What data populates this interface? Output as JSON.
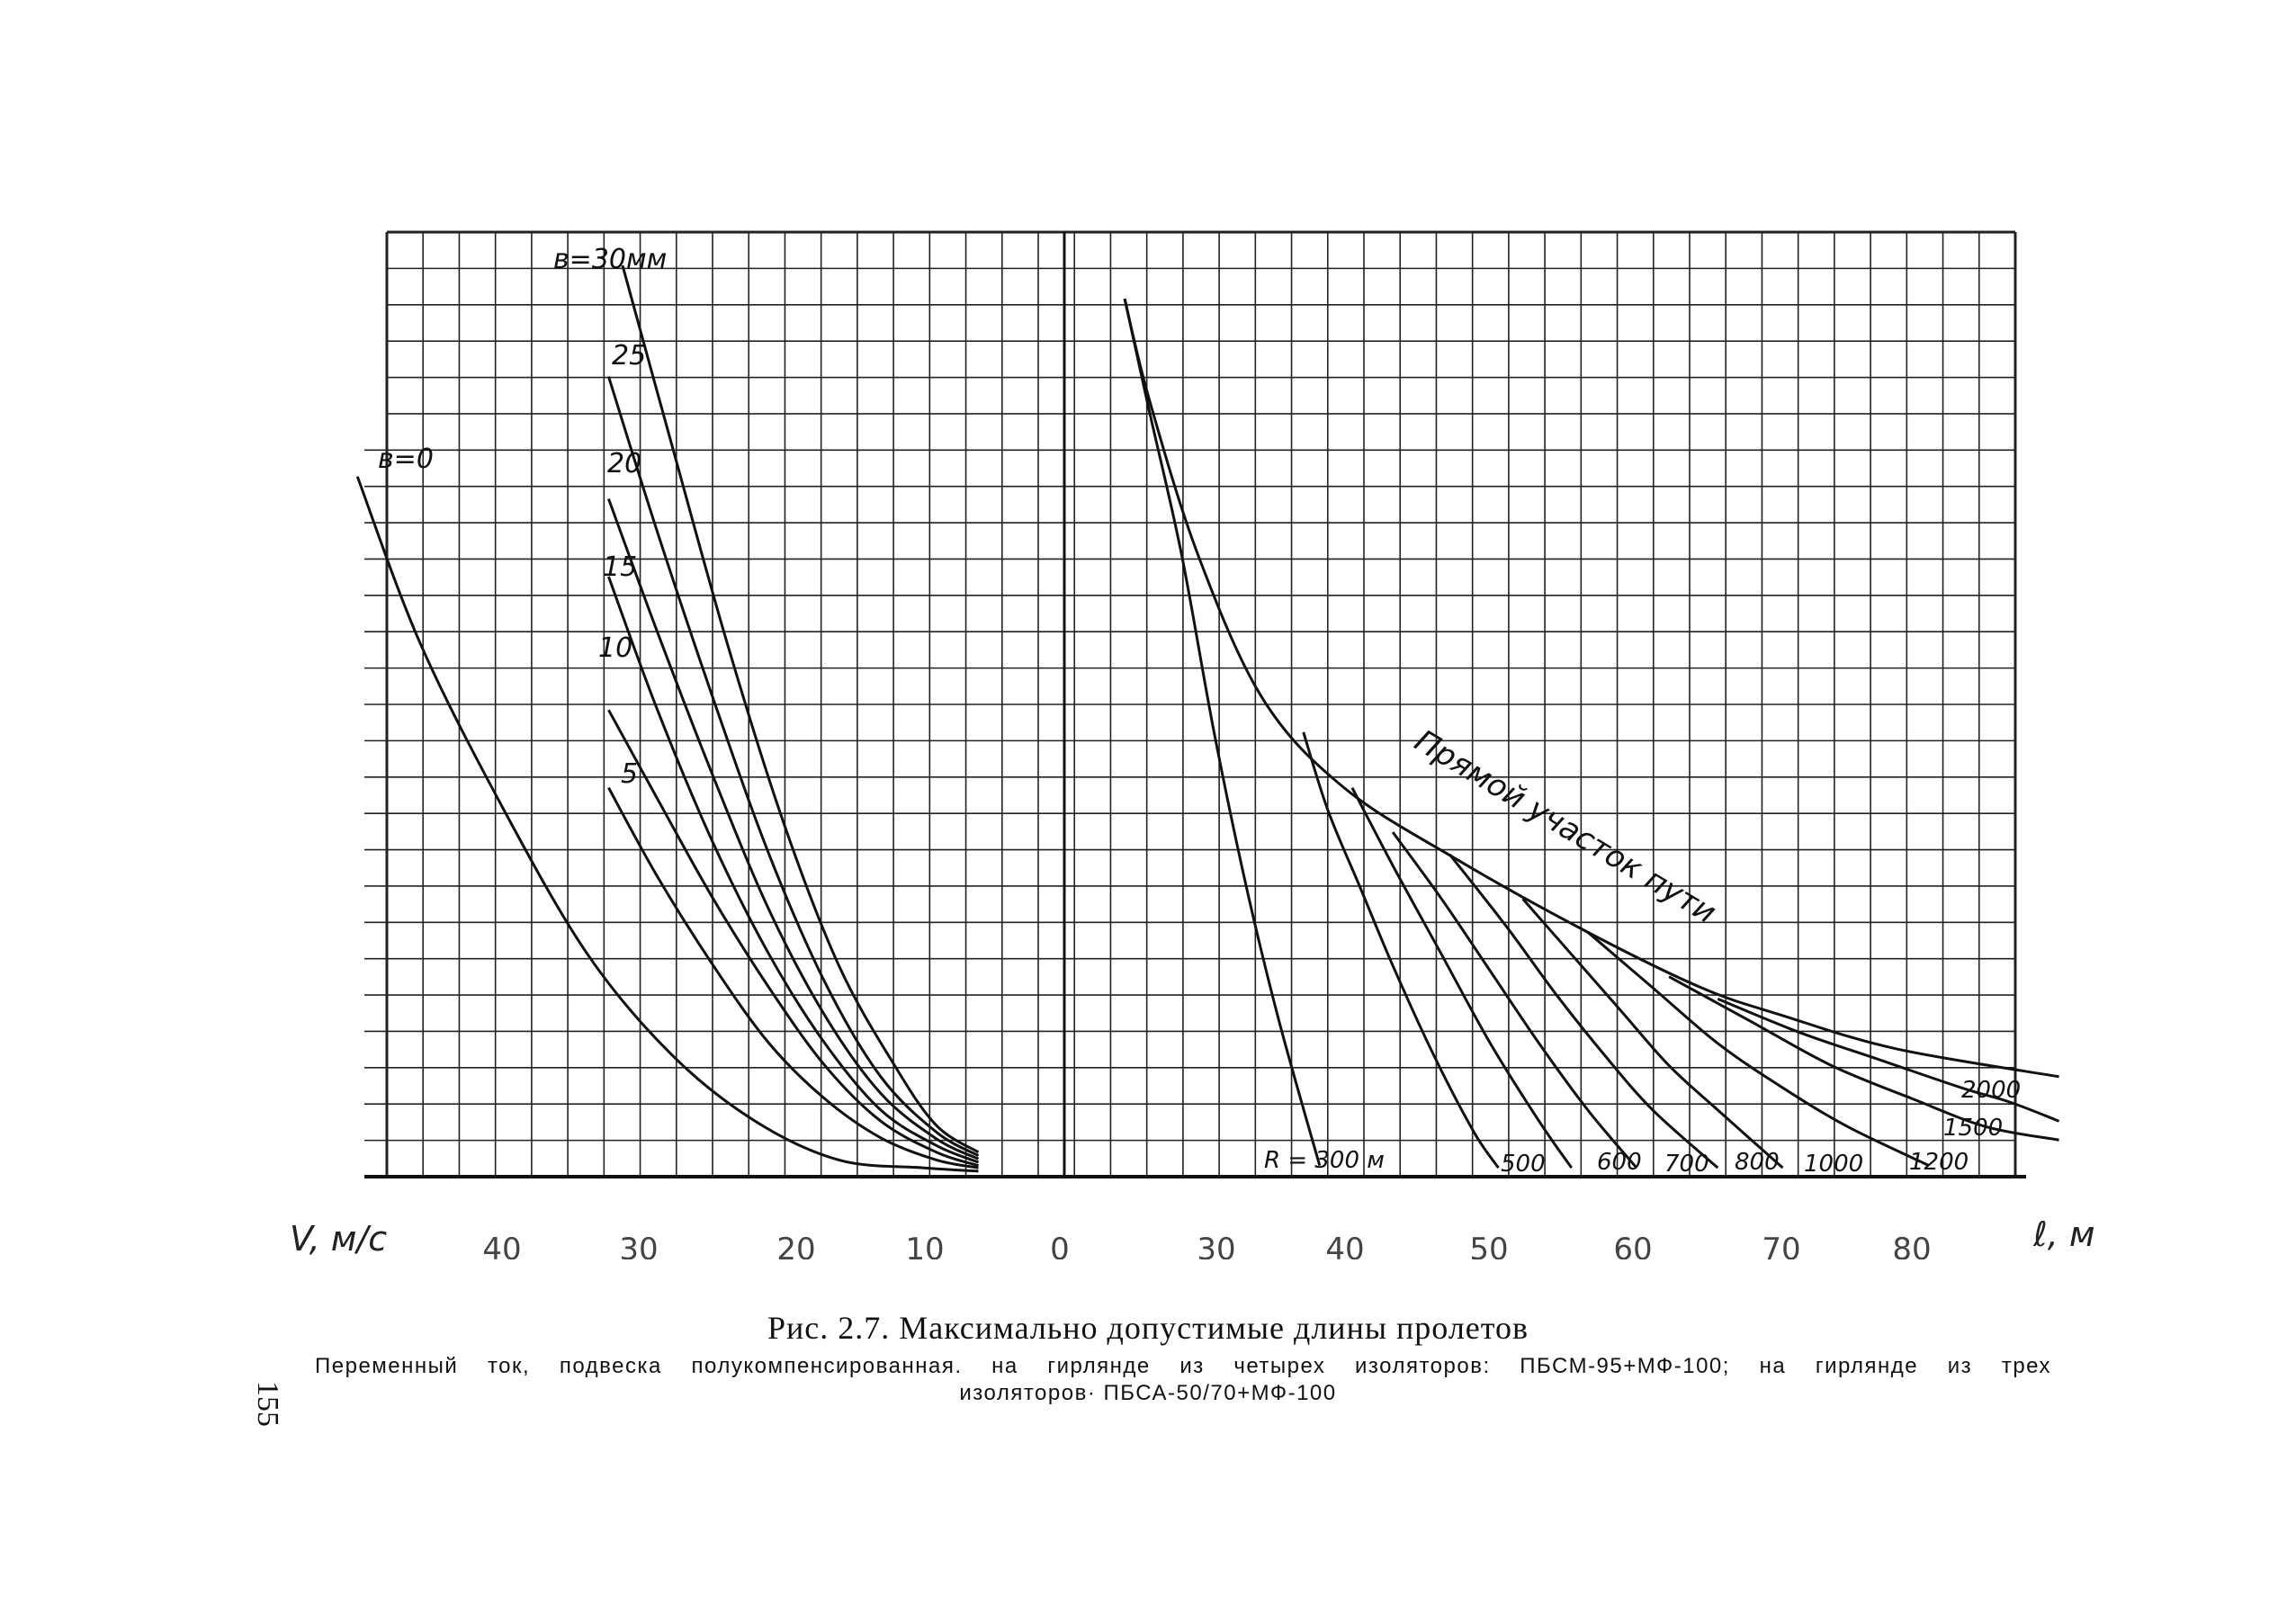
{
  "figure": {
    "page_number": "155",
    "caption_title": "Рис. 2.7. Максимально допустимые длины пролетов",
    "caption_line1": "Переменный ток, подвеска полукомпенсированная. на гирлянде из четырех изоляторов: ПБСМ-95+МФ-100; на гирлянде из трех",
    "caption_line2": "изоляторов· ПБСА-50/70+МФ-100"
  },
  "chart_data": {
    "type": "line",
    "left_axis": {
      "label": "V, м/с",
      "tick_labels": [
        "40",
        "30",
        "20",
        "10",
        "0"
      ],
      "ticks": [
        40,
        30,
        20,
        10,
        0
      ],
      "x_range": [
        48,
        3
      ]
    },
    "right_axis": {
      "label": "ℓ, м",
      "tick_labels": [
        "30",
        "40",
        "50",
        "60",
        "70",
        "80"
      ],
      "ticks": [
        30,
        40,
        50,
        60,
        70,
        80
      ],
      "x_range": [
        20,
        89
      ]
    },
    "y_range": [
      0,
      85
    ],
    "grid": true,
    "left_panel": {
      "curve_label_unit": "мм",
      "series": [
        {
          "name": "в=0",
          "label_text": "в=0",
          "points": [
            [
              48.5,
              63
            ],
            [
              44,
              48
            ],
            [
              38,
              33
            ],
            [
              32,
              20
            ],
            [
              26,
              11
            ],
            [
              20,
              5
            ],
            [
              14,
              1.5
            ],
            [
              8,
              0.8
            ],
            [
              4,
              0.5
            ]
          ]
        },
        {
          "name": "5",
          "label_text": "5",
          "points": [
            [
              30.5,
              35
            ],
            [
              27,
              27
            ],
            [
              23,
              19
            ],
            [
              19,
              12
            ],
            [
              15,
              7
            ],
            [
              11,
              3.5
            ],
            [
              7,
              1.5
            ],
            [
              4,
              0.8
            ]
          ]
        },
        {
          "name": "10",
          "label_text": "10",
          "points": [
            [
              30.5,
              42
            ],
            [
              27,
              34
            ],
            [
              23,
              25
            ],
            [
              19,
              17
            ],
            [
              15,
              10
            ],
            [
              11,
              5
            ],
            [
              7,
              2.2
            ],
            [
              4,
              1
            ]
          ]
        },
        {
          "name": "15",
          "label_text": "15",
          "points": [
            [
              30.5,
              54
            ],
            [
              27,
              42
            ],
            [
              23,
              30
            ],
            [
              19,
              20
            ],
            [
              15,
              12
            ],
            [
              11,
              6
            ],
            [
              7,
              2.8
            ],
            [
              4,
              1.3
            ]
          ]
        },
        {
          "name": "20",
          "label_text": "20",
          "points": [
            [
              30.5,
              61
            ],
            [
              27,
              49
            ],
            [
              23,
              36
            ],
            [
              19,
              24
            ],
            [
              15,
              14.5
            ],
            [
              11,
              7.5
            ],
            [
              7,
              3.4
            ],
            [
              4,
              1.6
            ]
          ]
        },
        {
          "name": "25",
          "label_text": "25",
          "points": [
            [
              30.5,
              72
            ],
            [
              27,
              58
            ],
            [
              23,
              43
            ],
            [
              19,
              29
            ],
            [
              15,
              17.5
            ],
            [
              11,
              9
            ],
            [
              7,
              4
            ],
            [
              4,
              1.9
            ]
          ]
        },
        {
          "name": "в=30 мм",
          "label_text": "в=30мм",
          "points": [
            [
              29.5,
              82
            ],
            [
              26,
              66
            ],
            [
              22,
              48
            ],
            [
              18,
              32
            ],
            [
              14,
              19
            ],
            [
              10,
              10
            ],
            [
              7,
              4.6
            ],
            [
              4,
              2.2
            ]
          ]
        }
      ]
    },
    "right_panel": {
      "straight_label": "Прямой участок пути",
      "radius_prefix": "R = ",
      "radius_unit": "м",
      "series": [
        {
          "name": "Прямой участок пути",
          "points": [
            [
              31.5,
              79
            ],
            [
              33,
              70
            ],
            [
              36,
              56
            ],
            [
              40,
              43
            ],
            [
              45,
              35
            ],
            [
              52,
              28.5
            ],
            [
              60,
              22
            ],
            [
              67,
              17
            ],
            [
              72,
              14.5
            ],
            [
              79,
              11.5
            ],
            [
              89,
              9
            ]
          ]
        },
        {
          "name": "R = 300 м",
          "label_text": "R = 300 м",
          "points": [
            [
              31.5,
              79
            ],
            [
              33,
              69
            ],
            [
              35,
              56
            ],
            [
              37,
              40
            ],
            [
              39,
              26
            ],
            [
              41,
              14
            ],
            [
              43.5,
              1
            ]
          ]
        },
        {
          "name": "500",
          "label_text": "500",
          "points": [
            [
              42.5,
              40
            ],
            [
              44,
              33
            ],
            [
              46,
              26
            ],
            [
              48,
              19
            ],
            [
              50.5,
              11
            ],
            [
              53,
              4
            ],
            [
              54.5,
              0.8
            ]
          ]
        },
        {
          "name": "600",
          "label_text": "600",
          "points": [
            [
              45.5,
              35
            ],
            [
              48,
              28
            ],
            [
              51,
              20
            ],
            [
              54,
              12
            ],
            [
              57,
              5
            ],
            [
              59,
              0.8
            ]
          ]
        },
        {
          "name": "700",
          "label_text": "700",
          "points": [
            [
              48,
              31
            ],
            [
              51,
              25
            ],
            [
              54,
              18.5
            ],
            [
              57,
              12
            ],
            [
              60,
              6
            ],
            [
              63,
              0.8
            ]
          ]
        },
        {
          "name": "800",
          "label_text": "800",
          "points": [
            [
              51.5,
              29
            ],
            [
              55,
              22.5
            ],
            [
              58,
              16.5
            ],
            [
              61,
              11
            ],
            [
              64,
              6
            ],
            [
              68,
              0.8
            ]
          ]
        },
        {
          "name": "1000",
          "label_text": "1000",
          "points": [
            [
              56,
              25
            ],
            [
              59,
              20
            ],
            [
              62,
              15
            ],
            [
              65,
              10
            ],
            [
              68,
              6
            ],
            [
              72,
              0.8
            ]
          ]
        },
        {
          "name": "1200",
          "label_text": "1200",
          "points": [
            [
              60,
              22
            ],
            [
              64,
              17
            ],
            [
              68,
              12
            ],
            [
              72,
              8
            ],
            [
              76,
              4.5
            ],
            [
              81,
              1
            ]
          ]
        },
        {
          "name": "1500",
          "label_text": "1500",
          "points": [
            [
              65,
              18
            ],
            [
              70,
              14
            ],
            [
              75,
              10
            ],
            [
              80,
              7
            ],
            [
              84.5,
              4.5
            ],
            [
              89,
              3.3
            ]
          ]
        },
        {
          "name": "2000",
          "label_text": "2000",
          "points": [
            [
              68,
              16
            ],
            [
              73,
              13
            ],
            [
              78,
              10.5
            ],
            [
              83,
              8
            ],
            [
              86,
              6.7
            ],
            [
              89,
              5
            ]
          ]
        }
      ]
    }
  }
}
